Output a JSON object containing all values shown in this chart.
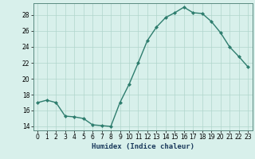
{
  "x": [
    0,
    1,
    2,
    3,
    4,
    5,
    6,
    7,
    8,
    9,
    10,
    11,
    12,
    13,
    14,
    15,
    16,
    17,
    18,
    19,
    20,
    21,
    22,
    23
  ],
  "y": [
    17.0,
    17.3,
    17.0,
    15.3,
    15.2,
    15.0,
    14.2,
    14.1,
    14.0,
    17.0,
    19.3,
    22.0,
    24.8,
    26.5,
    27.7,
    28.3,
    29.0,
    28.3,
    28.2,
    27.2,
    25.8,
    24.0,
    22.8,
    21.5
  ],
  "line_color": "#2e7d6e",
  "marker": "D",
  "marker_size": 2.0,
  "bg_color": "#d8f0eb",
  "grid_color": "#b0d5cc",
  "xlabel": "Humidex (Indice chaleur)",
  "ylim": [
    13.5,
    29.5
  ],
  "yticks": [
    14,
    16,
    18,
    20,
    22,
    24,
    26,
    28
  ],
  "xticks": [
    0,
    1,
    2,
    3,
    4,
    5,
    6,
    7,
    8,
    9,
    10,
    11,
    12,
    13,
    14,
    15,
    16,
    17,
    18,
    19,
    20,
    21,
    22,
    23
  ],
  "xlabel_fontsize": 6.5,
  "tick_fontsize": 5.5,
  "line_width": 1.0
}
